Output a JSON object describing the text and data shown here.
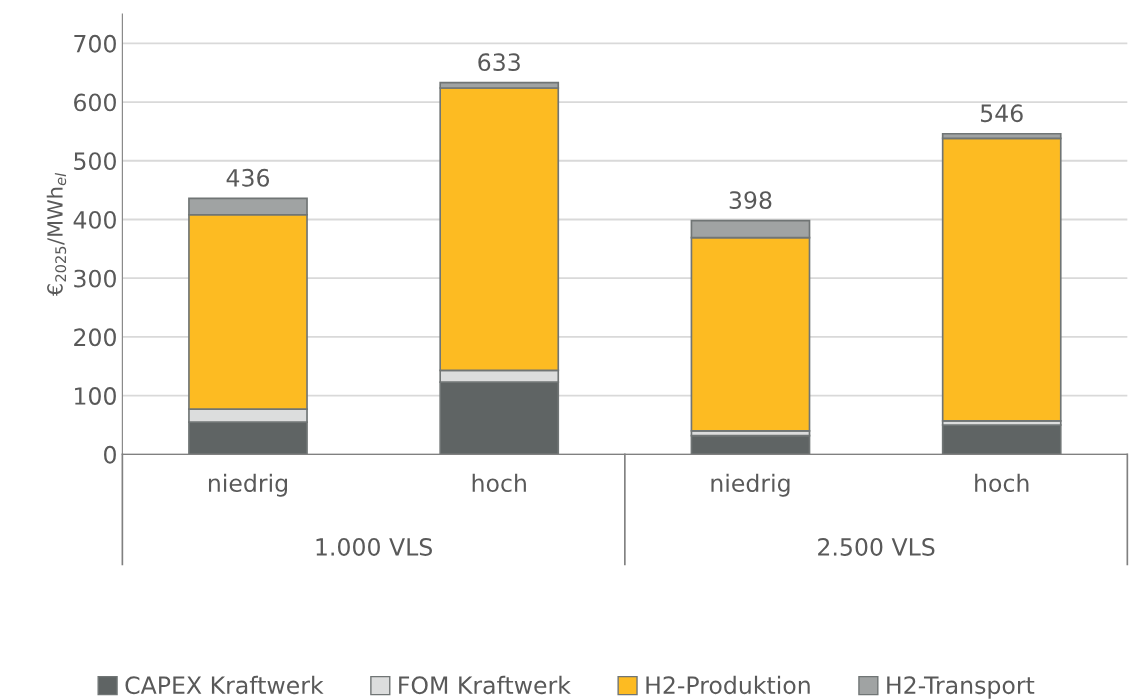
{
  "chart_data": {
    "type": "bar",
    "stacked": true,
    "ylabel": "€$_{2025}$/MWh$_{el}$",
    "categories": [
      "niedrig",
      "hoch",
      "niedrig",
      "hoch"
    ],
    "series": [
      {
        "name": "CAPEX Kraftwerk",
        "color": "#5f6464",
        "values": [
          55,
          123,
          32,
          50
        ]
      },
      {
        "name": "FOM Kraftwerk",
        "color": "#dcdddd",
        "values": [
          22,
          20,
          8,
          7
        ]
      },
      {
        "name": "H2-Produktion",
        "color": "#fdbb22",
        "values": [
          331,
          481,
          329,
          481
        ]
      },
      {
        "name": "H2-Transport",
        "color": "#a0a3a3",
        "values": [
          28,
          9,
          29,
          8
        ]
      }
    ],
    "totals": [
      "436",
      "633",
      "398",
      "546"
    ],
    "annotations": [
      "1.000 VLS",
      "2.500 VLS"
    ],
    "ylim": [
      0,
      750
    ],
    "yticks": [
      0,
      100,
      200,
      300,
      400,
      500,
      600,
      700
    ],
    "grid": "y",
    "legend": "bottom"
  }
}
